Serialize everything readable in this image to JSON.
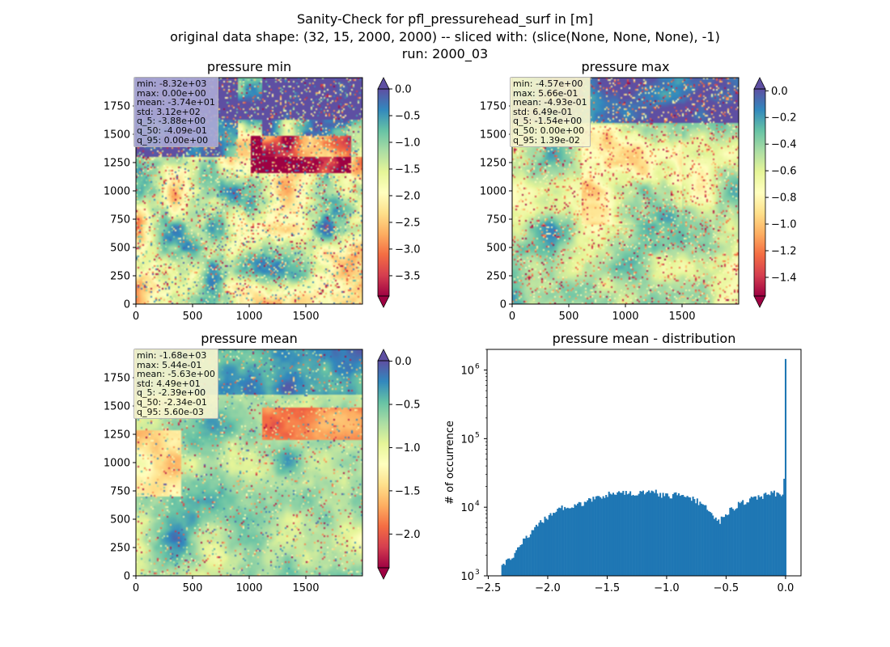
{
  "figure": {
    "title_lines": [
      "Sanity-Check for pfl_pressurehead_surf in [m]",
      "original data shape: (32, 15, 2000, 2000) -- sliced with: (slice(None, None, None), -1)",
      "run: 2000_03"
    ]
  },
  "chart_data": [
    {
      "type": "heatmap",
      "title": "pressure min",
      "colormap": "Spectral",
      "xlim": [
        0,
        2000
      ],
      "ylim": [
        0,
        2000
      ],
      "xticks": [
        0,
        500,
        1000,
        1500
      ],
      "yticks": [
        0,
        250,
        500,
        750,
        1000,
        1250,
        1500,
        1750
      ],
      "colorbar": {
        "range": [
          -3.88,
          0.0
        ],
        "ticks": [
          "0.0",
          "−0.5",
          "−1.0",
          "−1.5",
          "−2.0",
          "−2.5",
          "−3.0",
          "−3.5"
        ],
        "tick_values": [
          0,
          -0.5,
          -1.0,
          -1.5,
          -2.0,
          -2.5,
          -3.0,
          -3.5
        ],
        "extend": "both",
        "over_color": "#5e4fa2",
        "under_color": "#9e0142"
      },
      "stats": [
        "min: -8.32e+03",
        "max: 0.00e+00",
        "mean: -3.74e+01",
        "std: 3.12e+02",
        "q_5: -3.88e+00",
        "q_50: -4.09e-01",
        "q_95: 0.00e+00"
      ],
      "stats_box_color": "#aaa8d5"
    },
    {
      "type": "heatmap",
      "title": "pressure max",
      "colormap": "Spectral",
      "xlim": [
        0,
        2000
      ],
      "ylim": [
        0,
        2000
      ],
      "xticks": [
        0,
        500,
        1000,
        1500
      ],
      "yticks": [
        0,
        250,
        500,
        750,
        1000,
        1250,
        1500,
        1750
      ],
      "colorbar": {
        "range": [
          -1.54,
          0.0139
        ],
        "ticks": [
          "0.0",
          "−0.2",
          "−0.4",
          "−0.6",
          "−0.8",
          "−1.0",
          "−1.2",
          "−1.4"
        ],
        "tick_values": [
          0,
          -0.2,
          -0.4,
          -0.6,
          -0.8,
          -1.0,
          -1.2,
          -1.4
        ],
        "extend": "both",
        "over_color": "#5e4fa2",
        "under_color": "#9e0142"
      },
      "stats": [
        "min: -4.57e+00",
        "max: 5.66e-01",
        "mean: -4.93e-01",
        "std: 6.49e-01",
        "q_5: -1.54e+00",
        "q_50: 0.00e+00",
        "q_95: 1.39e-02"
      ],
      "stats_box_color": "#f7f5cf"
    },
    {
      "type": "heatmap",
      "title": "pressure mean",
      "colormap": "Spectral",
      "xlim": [
        0,
        2000
      ],
      "ylim": [
        0,
        2000
      ],
      "xticks": [
        0,
        500,
        1000,
        1500
      ],
      "yticks": [
        0,
        250,
        500,
        750,
        1000,
        1250,
        1500,
        1750
      ],
      "colorbar": {
        "range": [
          -2.39,
          0.0056
        ],
        "ticks": [
          "0.0",
          "−0.5",
          "−1.0",
          "−1.5",
          "−2.0"
        ],
        "tick_values": [
          0,
          -0.5,
          -1.0,
          -1.5,
          -2.0
        ],
        "extend": "both",
        "over_color": "#5e4fa2",
        "under_color": "#9e0142"
      },
      "stats": [
        "min: -1.68e+03",
        "max: 5.44e-01",
        "mean: -5.63e+00",
        "std: 4.49e+01",
        "q_5: -2.39e+00",
        "q_50: -2.34e-01",
        "q_95: 5.60e-03"
      ],
      "stats_box_color": "#f7f5cf"
    },
    {
      "type": "bar",
      "title": "pressure mean - distribution",
      "ylabel": "# of occurrence",
      "xlabel": "",
      "yscale": "log",
      "xlim": [
        -2.51,
        0.13
      ],
      "ylim": [
        1000,
        2000000
      ],
      "xticks": [
        "−2.5",
        "−2.0",
        "−1.5",
        "−1.0",
        "−0.5",
        "0.0"
      ],
      "xtick_values": [
        -2.5,
        -2.0,
        -1.5,
        -1.0,
        -0.5,
        0.0
      ],
      "ytick_labels": [
        "10",
        "10",
        "10",
        "10"
      ],
      "ytick_exponents": [
        "3",
        "4",
        "5",
        "6"
      ],
      "ytick_values": [
        1000,
        10000,
        100000,
        1000000
      ],
      "bar_color": "#1f77b4",
      "bins": {
        "start": -2.39,
        "end": 0.0056,
        "count": 200
      },
      "envelope": [
        [
          -2.39,
          1400
        ],
        [
          -2.3,
          1900
        ],
        [
          -2.2,
          3300
        ],
        [
          -2.1,
          5200
        ],
        [
          -2.0,
          7200
        ],
        [
          -1.9,
          9500
        ],
        [
          -1.8,
          10400
        ],
        [
          -1.7,
          11600
        ],
        [
          -1.6,
          13300
        ],
        [
          -1.5,
          15400
        ],
        [
          -1.45,
          17000
        ],
        [
          -1.4,
          16000
        ],
        [
          -1.3,
          16300
        ],
        [
          -1.2,
          16200
        ],
        [
          -1.1,
          17000
        ],
        [
          -1.05,
          15000
        ],
        [
          -1.0,
          14500
        ],
        [
          -0.9,
          15500
        ],
        [
          -0.8,
          14000
        ],
        [
          -0.75,
          12500
        ],
        [
          -0.7,
          11000
        ],
        [
          -0.65,
          9500
        ],
        [
          -0.6,
          7000
        ],
        [
          -0.56,
          6000
        ],
        [
          -0.5,
          8200
        ],
        [
          -0.4,
          10800
        ],
        [
          -0.3,
          13000
        ],
        [
          -0.2,
          14500
        ],
        [
          -0.1,
          16000
        ],
        [
          -0.05,
          15000
        ],
        [
          -0.02,
          17000
        ],
        [
          -0.01,
          26000
        ],
        [
          0.0,
          1450000
        ]
      ]
    }
  ]
}
